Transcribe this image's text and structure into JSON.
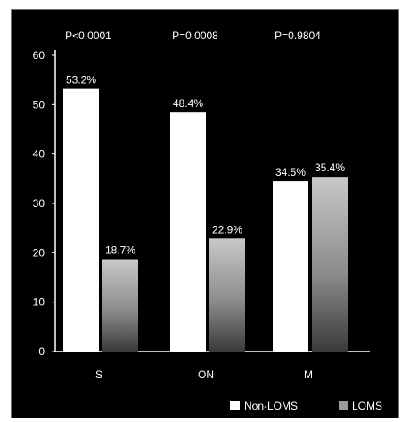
{
  "chart_data": {
    "type": "bar",
    "categories": [
      "S",
      "ON",
      "M"
    ],
    "series": [
      {
        "name": "Non-LOMS",
        "values": [
          53.2,
          48.4,
          34.5
        ],
        "labels": [
          "53.2%",
          "48.4%",
          "34.5%"
        ]
      },
      {
        "name": "LOMS",
        "values": [
          18.7,
          22.9,
          35.4
        ],
        "labels": [
          "18.7%",
          "22.9%",
          "35.4%"
        ]
      }
    ],
    "annotations": [
      "P<0.0001",
      "P=0.0008",
      "P=0.9804"
    ],
    "ylim": [
      0,
      60
    ],
    "yticks": [
      "0",
      "10",
      "20",
      "30",
      "40",
      "50",
      "60"
    ],
    "grid": false,
    "legend_position": "bottom-right",
    "colors": {
      "background": "#000000",
      "text": "#ffffff",
      "non_loms": "#ffffff",
      "loms": "#9a9a9a"
    }
  }
}
